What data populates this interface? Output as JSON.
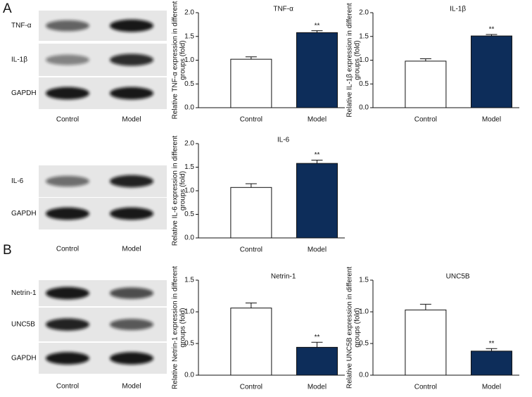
{
  "panel_labels": [
    "A",
    "B"
  ],
  "blots": [
    {
      "bands": [
        "TNF-α",
        "IL-1β",
        "GAPDH"
      ],
      "lanes": [
        "Control",
        "Model"
      ]
    },
    {
      "bands": [
        "IL-6",
        "GAPDH"
      ],
      "lanes": [
        "Control",
        "Model"
      ]
    },
    {
      "bands": [
        "Netrin-1",
        "UNC5B",
        "GAPDH"
      ],
      "lanes": [
        "Control",
        "Model"
      ]
    }
  ],
  "chart_data": [
    {
      "type": "bar",
      "title": "TNF-α",
      "ylabel": [
        "Relative TNF-α expression in different",
        "groups (fold)"
      ],
      "categories": [
        "Control",
        "Model"
      ],
      "values": [
        1.02,
        1.58
      ],
      "errors": [
        0.05,
        0.04
      ],
      "colors": [
        "#ffffff",
        "#0d2d5a"
      ],
      "annotations": [
        {
          "text": "**",
          "category": "Model"
        }
      ],
      "ylim": [
        0,
        2
      ],
      "yticks": [
        {
          "value": 0,
          "label": "0.0"
        },
        {
          "value": 0.5,
          "label": "0.5"
        },
        {
          "value": 1,
          "label": "1.0"
        },
        {
          "value": 1.5,
          "label": "1.5"
        },
        {
          "value": 2,
          "label": "2.0"
        }
      ]
    },
    {
      "type": "bar",
      "title": "IL-1β",
      "ylabel": [
        "Relative IL-1β expression in different",
        "groups (fold)"
      ],
      "categories": [
        "Control",
        "Model"
      ],
      "values": [
        0.98,
        1.51
      ],
      "errors": [
        0.05,
        0.03
      ],
      "colors": [
        "#ffffff",
        "#0d2d5a"
      ],
      "annotations": [
        {
          "text": "**",
          "category": "Model"
        }
      ],
      "ylim": [
        0,
        2
      ],
      "yticks": [
        {
          "value": 0,
          "label": "0.0"
        },
        {
          "value": 0.5,
          "label": "0.5"
        },
        {
          "value": 1,
          "label": "1.0"
        },
        {
          "value": 1.5,
          "label": "1.5"
        },
        {
          "value": 2,
          "label": "2.0"
        }
      ]
    },
    {
      "type": "bar",
      "title": "IL-6",
      "ylabel": [
        "Relative IL-6 expression in different",
        "groups (fold)"
      ],
      "categories": [
        "Control",
        "Model"
      ],
      "values": [
        1.07,
        1.58
      ],
      "errors": [
        0.08,
        0.07
      ],
      "colors": [
        "#ffffff",
        "#0d2d5a"
      ],
      "annotations": [
        {
          "text": "**",
          "category": "Model"
        }
      ],
      "ylim": [
        0,
        2
      ],
      "yticks": [
        {
          "value": 0,
          "label": "0.0"
        },
        {
          "value": 0.5,
          "label": "0.5"
        },
        {
          "value": 1,
          "label": "1.0"
        },
        {
          "value": 1.5,
          "label": "1.5"
        },
        {
          "value": 2,
          "label": "2.0"
        }
      ]
    },
    {
      "type": "bar",
      "title": "Netrin-1",
      "ylabel": [
        "Relative Netrin-1 expression in different",
        "groups (fold)"
      ],
      "categories": [
        "Control",
        "Model"
      ],
      "values": [
        1.06,
        0.44
      ],
      "errors": [
        0.08,
        0.08
      ],
      "colors": [
        "#ffffff",
        "#0d2d5a"
      ],
      "annotations": [
        {
          "text": "**",
          "category": "Model"
        }
      ],
      "ylim": [
        0,
        1.5
      ],
      "yticks": [
        {
          "value": 0,
          "label": "0.0"
        },
        {
          "value": 0.5,
          "label": "0.5"
        },
        {
          "value": 1,
          "label": "1.0"
        },
        {
          "value": 1.5,
          "label": "1.5"
        }
      ]
    },
    {
      "type": "bar",
      "title": "UNC5B",
      "ylabel": [
        "Relative UNC5B expression in different",
        "groups (fold)"
      ],
      "categories": [
        "Control",
        "Model"
      ],
      "values": [
        1.03,
        0.38
      ],
      "errors": [
        0.09,
        0.04
      ],
      "colors": [
        "#ffffff",
        "#0d2d5a"
      ],
      "annotations": [
        {
          "text": "**",
          "category": "Model"
        }
      ],
      "ylim": [
        0,
        1.5
      ],
      "yticks": [
        {
          "value": 0,
          "label": "0.0"
        },
        {
          "value": 0.5,
          "label": "0.5"
        },
        {
          "value": 1,
          "label": "1.0"
        },
        {
          "value": 1.5,
          "label": "1.5"
        }
      ]
    }
  ]
}
